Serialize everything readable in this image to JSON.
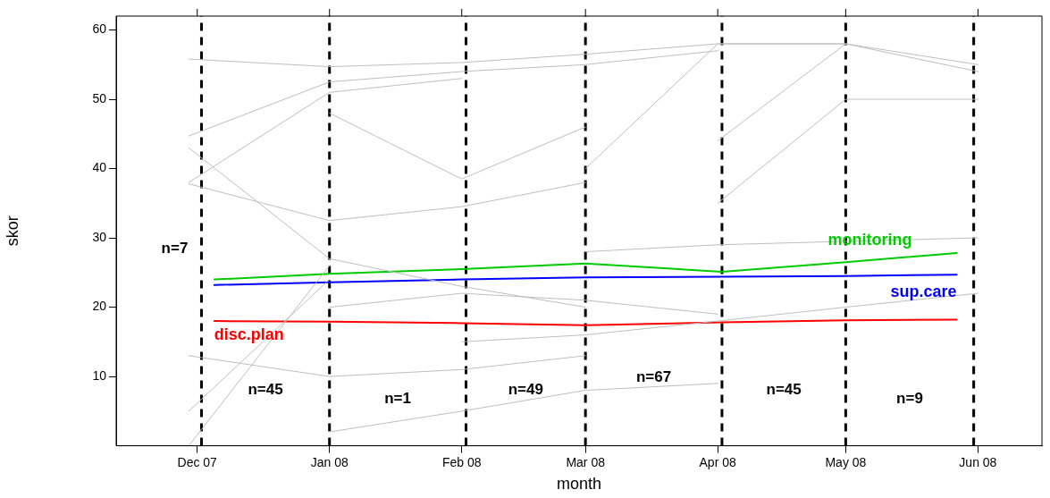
{
  "chart_data": {
    "type": "line",
    "xlabel": "month",
    "ylabel": "skor",
    "xlim": [
      "2007-11-12",
      "2008-06-16"
    ],
    "xticks": [
      {
        "value": "2007-12-01",
        "label": "Dec 07"
      },
      {
        "value": "2008-01-01",
        "label": "Jan 08"
      },
      {
        "value": "2008-02-01",
        "label": "Feb 08"
      },
      {
        "value": "2008-03-01",
        "label": "Mar 08"
      },
      {
        "value": "2008-04-01",
        "label": "Apr 08"
      },
      {
        "value": "2008-05-01",
        "label": "May 08"
      },
      {
        "value": "2008-06-01",
        "label": "Jun 08"
      }
    ],
    "ylim": [
      0,
      62
    ],
    "yticks": [
      10,
      20,
      30,
      40,
      50,
      60
    ],
    "grid": false,
    "legend": false,
    "marker": "none",
    "line_style": "solid",
    "series": [
      {
        "color": "#bebebe",
        "x": [
          "2007-11-29",
          "2008-01-01",
          "2008-02-01",
          "2008-03-01",
          "2008-04-01",
          "2008-05-01"
        ],
        "values": [
          55.8,
          54.7,
          55.3,
          56.5,
          58,
          58
        ]
      },
      {
        "color": "#bebebe",
        "x": [
          "2007-11-29",
          "2008-01-01",
          "2008-02-01",
          "2008-03-01",
          "2008-04-01"
        ],
        "values": [
          44.7,
          52.5,
          54,
          55,
          57
        ]
      },
      {
        "color": "#bebebe",
        "x": [
          "2007-11-29",
          "2008-01-01",
          "2008-02-01"
        ],
        "values": [
          38,
          51,
          53
        ]
      },
      {
        "color": "#bebebe",
        "x": [
          "2007-11-29",
          "2008-01-01",
          "2008-02-01",
          "2008-03-01"
        ],
        "values": [
          43,
          27,
          23,
          20
        ]
      },
      {
        "color": "#bebebe",
        "x": [
          "2007-11-29",
          "2008-01-01",
          "2008-02-01",
          "2008-03-01"
        ],
        "values": [
          37.8,
          32.5,
          34.5,
          38
        ]
      },
      {
        "color": "#bebebe",
        "x": [
          "2007-11-29",
          "2008-01-01"
        ],
        "values": [
          0,
          26
        ]
      },
      {
        "color": "#bebebe",
        "x": [
          "2007-11-29",
          "2008-01-01"
        ],
        "values": [
          5,
          24
        ]
      },
      {
        "color": "#bebebe",
        "x": [
          "2007-11-29",
          "2008-01-01",
          "2008-02-01",
          "2008-03-01"
        ],
        "values": [
          13,
          10,
          11,
          13
        ]
      },
      {
        "color": "#bebebe",
        "x": [
          "2008-01-01",
          "2008-02-01",
          "2008-03-01",
          "2008-04-01"
        ],
        "values": [
          2,
          5,
          8,
          9
        ]
      },
      {
        "color": "#bebebe",
        "x": [
          "2008-01-01",
          "2008-02-01",
          "2008-03-01"
        ],
        "values": [
          48,
          38.5,
          46
        ]
      },
      {
        "color": "#bebebe",
        "x": [
          "2008-03-01",
          "2008-04-01",
          "2008-05-01",
          "2008-06-01"
        ],
        "values": [
          40,
          58,
          58,
          54
        ]
      },
      {
        "color": "#bebebe",
        "x": [
          "2008-04-01",
          "2008-05-01",
          "2008-06-01"
        ],
        "values": [
          44,
          58,
          55
        ]
      },
      {
        "color": "#bebebe",
        "x": [
          "2008-03-01",
          "2008-04-01",
          "2008-05-01",
          "2008-06-01"
        ],
        "values": [
          28,
          29,
          29.5,
          30
        ]
      },
      {
        "color": "#bebebe",
        "x": [
          "2008-02-01",
          "2008-03-01",
          "2008-04-01",
          "2008-05-01",
          "2008-06-01"
        ],
        "values": [
          15,
          16,
          18,
          20,
          22
        ]
      },
      {
        "color": "#bebebe",
        "x": [
          "2008-01-01",
          "2008-02-01",
          "2008-03-01",
          "2008-04-01"
        ],
        "values": [
          20,
          22,
          21,
          19
        ]
      },
      {
        "color": "#bebebe",
        "x": [
          "2008-04-01",
          "2008-05-01",
          "2008-06-01"
        ],
        "values": [
          35,
          50,
          50
        ]
      },
      {
        "name": "monitoring",
        "color": "#00cc00",
        "x": [
          "2007-12-05",
          "2008-01-01",
          "2008-02-01",
          "2008-03-01",
          "2008-04-02",
          "2008-05-01",
          "2008-05-27"
        ],
        "values": [
          24,
          24.8,
          25.5,
          26.3,
          25.1,
          26.5,
          27.8
        ]
      },
      {
        "name": "sup.care",
        "color": "#0000ff",
        "x": [
          "2007-12-05",
          "2008-01-01",
          "2008-02-01",
          "2008-03-01",
          "2008-04-02",
          "2008-05-01",
          "2008-05-27"
        ],
        "values": [
          23.2,
          23.6,
          24,
          24.3,
          24.4,
          24.5,
          24.7
        ]
      },
      {
        "name": "disc.plan",
        "color": "#ff0000",
        "x": [
          "2007-12-05",
          "2008-01-01",
          "2008-02-01",
          "2008-03-01",
          "2008-04-02",
          "2008-05-01",
          "2008-05-27"
        ],
        "values": [
          18,
          17.9,
          17.7,
          17.4,
          17.8,
          18.1,
          18.2
        ]
      }
    ],
    "ref_lines": [
      {
        "axis": "x",
        "value": "2007-12-02",
        "color": "#000000",
        "line_style": "dashed"
      },
      {
        "axis": "x",
        "value": "2008-01-01",
        "color": "#000000",
        "line_style": "dashed"
      },
      {
        "axis": "x",
        "value": "2008-02-02",
        "color": "#000000",
        "line_style": "dashed"
      },
      {
        "axis": "x",
        "value": "2008-03-01",
        "color": "#000000",
        "line_style": "dashed"
      },
      {
        "axis": "x",
        "value": "2008-04-02",
        "color": "#000000",
        "line_style": "dashed"
      },
      {
        "axis": "x",
        "value": "2008-05-01",
        "color": "#000000",
        "line_style": "dashed"
      },
      {
        "axis": "x",
        "value": "2008-05-31",
        "color": "#000000",
        "line_style": "dashed"
      }
    ],
    "annotations": [
      "n=7",
      "n=45",
      "n=1",
      "n=49",
      "n=67",
      "n=45",
      "n=9"
    ]
  }
}
